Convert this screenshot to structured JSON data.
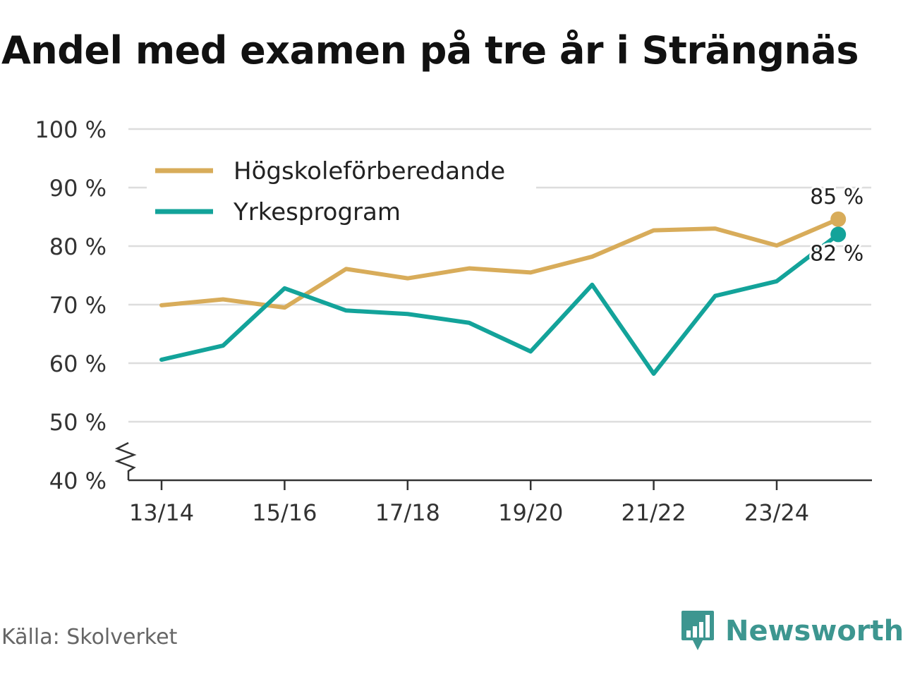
{
  "title": "Andel med examen på tre år i Strängnäs",
  "source": "Källa: Skolverket",
  "brand": {
    "name": "Newsworthy"
  },
  "colors": {
    "hogskole": "#d8ac5a",
    "yrke": "#13a39a",
    "grid": "#dddddd",
    "axis": "#333333",
    "brand": "#3d9690"
  },
  "chart_data": {
    "type": "line",
    "title": "Andel med examen på tre år i Strängnäs",
    "xlabel": "",
    "ylabel": "",
    "x": [
      "13/14",
      "14/15",
      "15/16",
      "16/17",
      "17/18",
      "18/19",
      "19/20",
      "20/21",
      "21/22",
      "22/23",
      "23/24",
      "24/25"
    ],
    "tick_labels": [
      "13/14",
      "15/16",
      "17/18",
      "19/20",
      "21/22",
      "23/24"
    ],
    "y_ticks": [
      "100 %",
      "90 %",
      "80 %",
      "70 %",
      "60 %",
      "50 %",
      "40 %"
    ],
    "y_tick_values": [
      100,
      90,
      80,
      70,
      60,
      50,
      40
    ],
    "ylim": [
      40,
      100
    ],
    "y_axis_break": true,
    "legend_position": "top-left",
    "series": [
      {
        "name": "Högskoleförberedande",
        "color": "#d8ac5a",
        "values": [
          69.9,
          70.9,
          69.5,
          76.1,
          74.5,
          76.2,
          75.5,
          78.2,
          82.7,
          83.0,
          80.1,
          84.6
        ],
        "end_label": "85 %"
      },
      {
        "name": "Yrkesprogram",
        "color": "#13a39a",
        "values": [
          60.6,
          63.0,
          72.8,
          69.0,
          68.4,
          66.9,
          62.0,
          73.4,
          58.2,
          71.5,
          74.0,
          82.0
        ],
        "end_label": "82 %"
      }
    ]
  }
}
